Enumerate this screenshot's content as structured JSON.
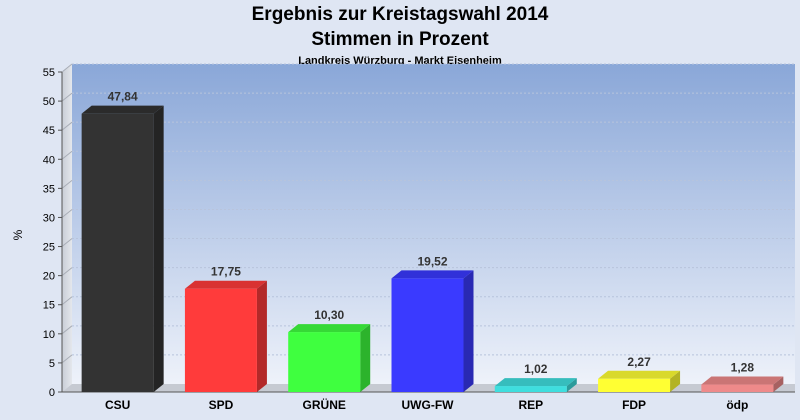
{
  "chart_data": {
    "type": "bar",
    "title": "Ergebnis zur Kreistagswahl 2014",
    "subtitle": "Stimmen in Prozent",
    "caption": "Landkreis Würzburg - Markt Eisenheim",
    "ylabel": "%",
    "xlabel": "",
    "ylim": [
      0,
      55
    ],
    "yticks": [
      0,
      5,
      10,
      15,
      20,
      25,
      30,
      35,
      40,
      45,
      50,
      55
    ],
    "categories": [
      "CSU",
      "SPD",
      "GRÜNE",
      "UWG-FW",
      "REP",
      "FDP",
      "ödp"
    ],
    "values": [
      47.84,
      17.75,
      10.3,
      19.52,
      1.02,
      2.27,
      1.28
    ],
    "value_labels": [
      "47,84",
      "17,75",
      "10,30",
      "19,52",
      "1,02",
      "2,27",
      "1,28"
    ],
    "colors": [
      "#333333",
      "#ff3b3b",
      "#3fff3f",
      "#3a3aff",
      "#3fdede",
      "#ffff33",
      "#ee8a8a"
    ],
    "grid": true,
    "legend": "none"
  }
}
